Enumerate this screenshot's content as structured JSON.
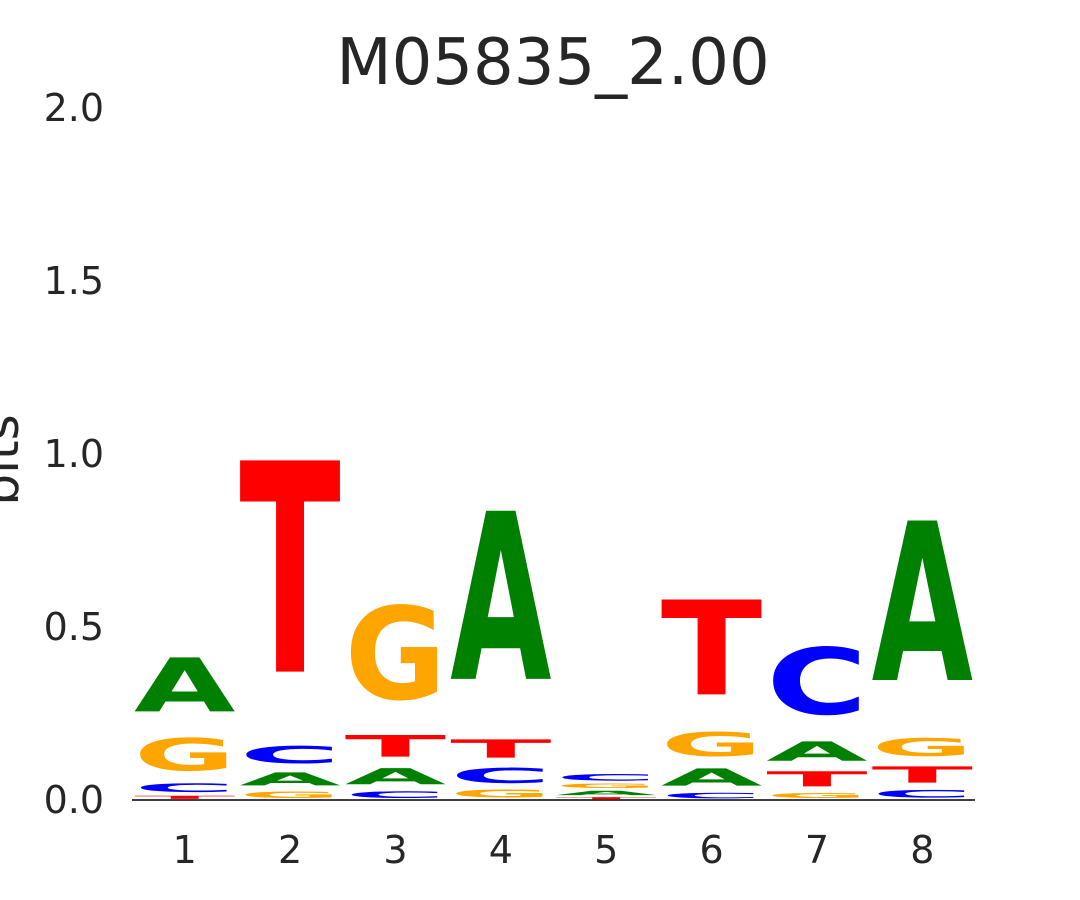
{
  "chart_data": {
    "type": "sequence-logo",
    "title": "M05835_2.00",
    "ylabel": "bits",
    "xlabel": "",
    "ylim": [
      0,
      2
    ],
    "yticks": [
      "0.0",
      "0.5",
      "1.0",
      "1.5",
      "2.0"
    ],
    "grid": false,
    "letter_colors": {
      "A": "#008000",
      "C": "#0000ff",
      "G": "#ffa500",
      "T": "#ff0000"
    },
    "positions": [
      {
        "label": "1",
        "stack": [
          {
            "letter": "T",
            "bits": 0.015
          },
          {
            "letter": "C",
            "bits": 0.04
          },
          {
            "letter": "G",
            "bits": 0.15
          },
          {
            "letter": "A",
            "bits": 0.25
          }
        ]
      },
      {
        "label": "2",
        "stack": [
          {
            "letter": "G",
            "bits": 0.03
          },
          {
            "letter": "A",
            "bits": 0.06
          },
          {
            "letter": "C",
            "bits": 0.08
          },
          {
            "letter": "T",
            "bits": 0.98
          }
        ]
      },
      {
        "label": "3",
        "stack": [
          {
            "letter": "C",
            "bits": 0.03
          },
          {
            "letter": "A",
            "bits": 0.075
          },
          {
            "letter": "T",
            "bits": 0.1
          },
          {
            "letter": "G",
            "bits": 0.43
          }
        ]
      },
      {
        "label": "4",
        "stack": [
          {
            "letter": "G",
            "bits": 0.035
          },
          {
            "letter": "C",
            "bits": 0.07
          },
          {
            "letter": "T",
            "bits": 0.085
          },
          {
            "letter": "A",
            "bits": 0.78
          }
        ]
      },
      {
        "label": "5",
        "stack": [
          {
            "letter": "T",
            "bits": 0.01
          },
          {
            "letter": "A",
            "bits": 0.02
          },
          {
            "letter": "G",
            "bits": 0.02
          },
          {
            "letter": "C",
            "bits": 0.03
          }
        ]
      },
      {
        "label": "6",
        "stack": [
          {
            "letter": "C",
            "bits": 0.025
          },
          {
            "letter": "A",
            "bits": 0.08
          },
          {
            "letter": "G",
            "bits": 0.11
          },
          {
            "letter": "T",
            "bits": 0.44
          }
        ]
      },
      {
        "label": "7",
        "stack": [
          {
            "letter": "G",
            "bits": 0.025
          },
          {
            "letter": "T",
            "bits": 0.07
          },
          {
            "letter": "A",
            "bits": 0.09
          },
          {
            "letter": "C",
            "bits": 0.31
          }
        ]
      },
      {
        "label": "8",
        "stack": [
          {
            "letter": "C",
            "bits": 0.035
          },
          {
            "letter": "T",
            "bits": 0.075
          },
          {
            "letter": "G",
            "bits": 0.085
          },
          {
            "letter": "A",
            "bits": 0.74
          }
        ]
      }
    ]
  }
}
